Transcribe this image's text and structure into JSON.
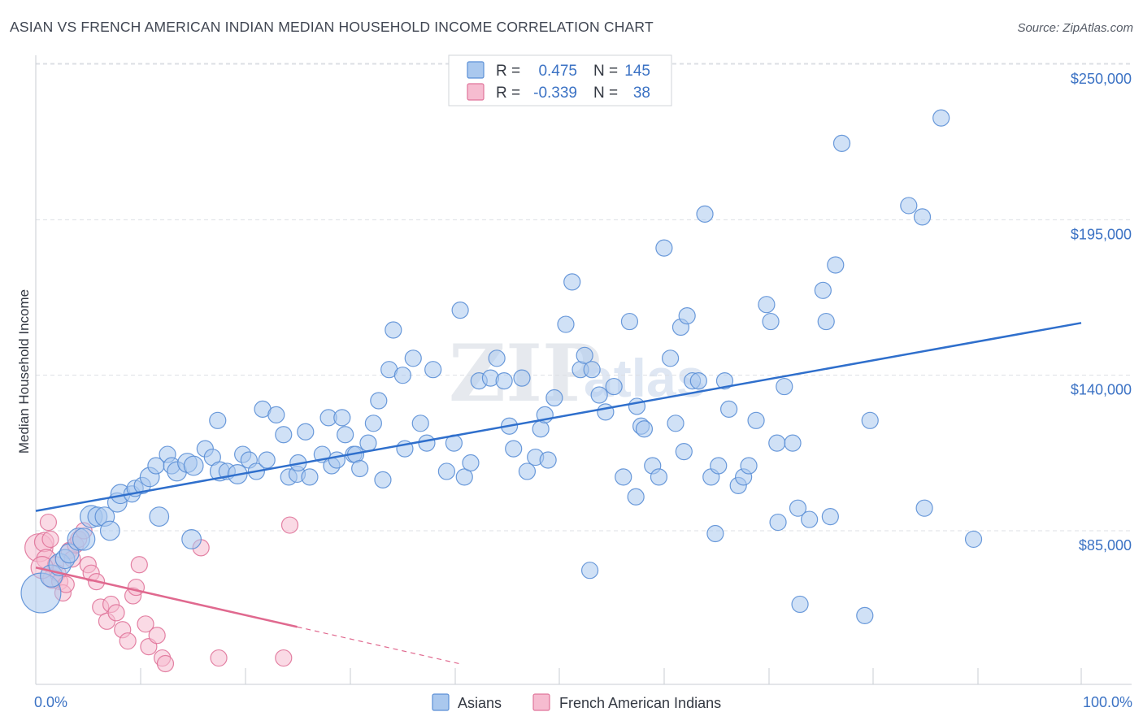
{
  "title": "ASIAN VS FRENCH AMERICAN INDIAN MEDIAN HOUSEHOLD INCOME CORRELATION CHART",
  "source": "Source: ZipAtlas.com",
  "watermark": {
    "zip": "ZIP",
    "atlas": "atlas"
  },
  "colors": {
    "asian_fill": "#aac8ee",
    "asian_stroke": "#5b8fd6",
    "asian_line": "#2f6fcc",
    "french_fill": "#f6bcd0",
    "french_stroke": "#e0749a",
    "french_line": "#e0698f",
    "axis_text": "#3b72c4",
    "grid": "#dcdfe4"
  },
  "legend": {
    "rows": [
      {
        "r_label": "R =",
        "r_value": "0.475",
        "n_label": "N =",
        "n_value": "145"
      },
      {
        "r_label": "R =",
        "r_value": "-0.339",
        "n_label": "N =",
        "n_value": "38"
      }
    ]
  },
  "bottom_legend": [
    "Asians",
    "French American Indians"
  ],
  "chart_data": {
    "type": "scatter",
    "title": "ASIAN VS FRENCH AMERICAN INDIAN MEDIAN HOUSEHOLD INCOME CORRELATION CHART",
    "xlabel": "",
    "ylabel": "Median Household Income",
    "x_tick_labels": [
      "0.0%",
      "100.0%"
    ],
    "y_tick_labels": [
      "$85,000",
      "$140,000",
      "$195,000",
      "$250,000"
    ],
    "y_ticks": [
      85000,
      140000,
      195000,
      250000
    ],
    "xlim": [
      0,
      100
    ],
    "ylim": [
      34000,
      262000
    ],
    "grid": true,
    "legend_position": "top-center",
    "series": [
      {
        "name": "Asians",
        "r": 0.475,
        "n": 145,
        "trend": {
          "x": [
            0,
            100
          ],
          "y": [
            92000,
            158500
          ]
        },
        "points": [
          [
            0.5,
            63,
            26
          ],
          [
            1.5,
            69,
            14
          ],
          [
            2.3,
            73,
            14
          ],
          [
            2.8,
            75,
            12
          ],
          [
            3.2,
            77,
            12
          ],
          [
            4.1,
            82,
            14
          ],
          [
            4.6,
            82,
            14
          ],
          [
            5.3,
            90,
            14
          ],
          [
            5.9,
            90,
            12
          ],
          [
            6.6,
            90,
            12
          ],
          [
            7.1,
            85,
            12
          ],
          [
            7.8,
            95,
            12
          ],
          [
            8.1,
            98,
            12
          ],
          [
            9.2,
            98,
            10
          ],
          [
            9.5,
            100,
            10
          ],
          [
            10.2,
            101,
            10
          ],
          [
            10.9,
            104,
            12
          ],
          [
            11.5,
            108,
            10
          ],
          [
            11.8,
            90,
            12
          ],
          [
            12.6,
            112,
            10
          ],
          [
            13.0,
            108,
            10
          ],
          [
            13.5,
            106,
            12
          ],
          [
            14.5,
            109,
            12
          ],
          [
            14.9,
            82,
            12
          ],
          [
            15.1,
            108,
            12
          ],
          [
            16.2,
            114,
            10
          ],
          [
            16.9,
            111,
            10
          ],
          [
            17.4,
            124,
            10
          ],
          [
            17.6,
            106,
            12
          ],
          [
            18.3,
            106,
            10
          ],
          [
            19.3,
            105,
            12
          ],
          [
            19.8,
            112,
            10
          ],
          [
            20.4,
            110,
            10
          ],
          [
            21.1,
            106,
            10
          ],
          [
            21.7,
            128,
            10
          ],
          [
            22.1,
            110,
            10
          ],
          [
            23.0,
            126,
            10
          ],
          [
            23.7,
            119,
            10
          ],
          [
            24.2,
            104,
            10
          ],
          [
            25.0,
            105,
            10
          ],
          [
            25.1,
            109,
            10
          ],
          [
            25.8,
            120,
            10
          ],
          [
            26.2,
            104,
            10
          ],
          [
            27.4,
            112,
            10
          ],
          [
            28.0,
            125,
            10
          ],
          [
            28.3,
            108,
            10
          ],
          [
            28.8,
            110,
            10
          ],
          [
            29.3,
            125,
            10
          ],
          [
            29.6,
            119,
            10
          ],
          [
            30.4,
            112,
            10
          ],
          [
            30.6,
            112,
            10
          ],
          [
            31.0,
            107,
            10
          ],
          [
            31.8,
            116,
            10
          ],
          [
            32.3,
            123,
            10
          ],
          [
            32.8,
            131,
            10
          ],
          [
            33.2,
            103,
            10
          ],
          [
            33.8,
            142,
            10
          ],
          [
            34.2,
            156,
            10
          ],
          [
            35.1,
            140,
            10
          ],
          [
            35.3,
            114,
            10
          ],
          [
            36.1,
            146,
            10
          ],
          [
            36.8,
            123,
            10
          ],
          [
            37.4,
            116,
            10
          ],
          [
            38.0,
            142,
            10
          ],
          [
            39.3,
            106,
            10
          ],
          [
            40.0,
            116,
            10
          ],
          [
            40.6,
            163,
            10
          ],
          [
            41.0,
            104,
            10
          ],
          [
            41.6,
            109,
            10
          ],
          [
            42.4,
            138,
            10
          ],
          [
            43.5,
            139,
            10
          ],
          [
            44.1,
            146,
            10
          ],
          [
            44.8,
            138,
            10
          ],
          [
            45.3,
            122,
            10
          ],
          [
            45.7,
            114,
            10
          ],
          [
            46.5,
            139,
            10
          ],
          [
            47.0,
            106,
            10
          ],
          [
            47.8,
            111,
            10
          ],
          [
            48.3,
            121,
            10
          ],
          [
            48.7,
            126,
            10
          ],
          [
            49.0,
            110,
            10
          ],
          [
            49.6,
            132,
            10
          ],
          [
            50.7,
            158,
            10
          ],
          [
            51.3,
            173,
            10
          ],
          [
            52.1,
            142,
            10
          ],
          [
            52.5,
            147,
            10
          ],
          [
            53.2,
            142,
            10
          ],
          [
            53.9,
            133,
            10
          ],
          [
            54.5,
            127,
            10
          ],
          [
            55.3,
            136,
            10
          ],
          [
            56.2,
            104,
            10
          ],
          [
            56.8,
            159,
            10
          ],
          [
            57.4,
            97,
            10
          ],
          [
            57.9,
            122,
            10
          ],
          [
            58.2,
            121,
            10
          ],
          [
            59.0,
            108,
            10
          ],
          [
            59.6,
            104,
            10
          ],
          [
            60.1,
            185,
            10
          ],
          [
            60.7,
            146,
            10
          ],
          [
            61.2,
            123,
            10
          ],
          [
            61.7,
            157,
            10
          ],
          [
            62.3,
            161,
            10
          ],
          [
            62.8,
            138,
            10
          ],
          [
            63.4,
            138,
            10
          ],
          [
            64.0,
            197,
            10
          ],
          [
            64.6,
            104,
            10
          ],
          [
            65.3,
            108,
            10
          ],
          [
            65.9,
            138,
            10
          ],
          [
            66.3,
            128,
            10
          ],
          [
            67.2,
            101,
            10
          ],
          [
            67.7,
            104,
            10
          ],
          [
            68.2,
            108,
            10
          ],
          [
            68.9,
            124,
            10
          ],
          [
            69.9,
            165,
            10
          ],
          [
            70.3,
            159,
            10
          ],
          [
            70.9,
            116,
            10
          ],
          [
            71.6,
            136,
            10
          ],
          [
            72.4,
            116,
            10
          ],
          [
            72.9,
            93,
            10
          ],
          [
            73.1,
            59,
            10
          ],
          [
            74.0,
            89,
            10
          ],
          [
            75.3,
            170,
            10
          ],
          [
            75.6,
            159,
            10
          ],
          [
            76.0,
            90,
            10
          ],
          [
            76.5,
            179,
            10
          ],
          [
            77.1,
            222,
            10
          ],
          [
            79.8,
            124,
            10
          ],
          [
            79.3,
            55,
            10
          ],
          [
            83.5,
            200,
            10
          ],
          [
            84.8,
            196,
            10
          ],
          [
            85.0,
            93,
            10
          ],
          [
            86.6,
            231,
            10
          ],
          [
            89.7,
            82,
            10
          ],
          [
            53.0,
            71,
            10
          ],
          [
            65.0,
            84,
            10
          ],
          [
            71.0,
            88,
            10
          ],
          [
            62.0,
            113,
            10
          ],
          [
            57.5,
            129,
            10
          ]
        ]
      },
      {
        "name": "French American Indians",
        "r": -0.339,
        "n": 38,
        "trend": {
          "x": [
            0,
            25
          ],
          "y": [
            72000,
            51000
          ]
        },
        "trend_dashed": {
          "x": [
            25,
            40.5
          ],
          "y": [
            51000,
            38000
          ]
        },
        "points": [
          [
            0.3,
            79,
            18
          ],
          [
            0.8,
            81,
            12
          ],
          [
            1.0,
            75,
            12
          ],
          [
            1.2,
            88,
            10
          ],
          [
            1.4,
            82,
            10
          ],
          [
            1.6,
            68,
            12
          ],
          [
            1.9,
            73,
            10
          ],
          [
            2.1,
            70,
            10
          ],
          [
            2.3,
            67,
            10
          ],
          [
            2.6,
            63,
            10
          ],
          [
            2.9,
            66,
            10
          ],
          [
            3.2,
            78,
            10
          ],
          [
            3.5,
            75,
            10
          ],
          [
            3.8,
            80,
            10
          ],
          [
            4.1,
            82,
            10
          ],
          [
            4.6,
            85,
            10
          ],
          [
            5.0,
            73,
            10
          ],
          [
            5.3,
            70,
            10
          ],
          [
            5.8,
            67,
            10
          ],
          [
            6.2,
            58,
            10
          ],
          [
            6.8,
            53,
            10
          ],
          [
            7.2,
            59,
            10
          ],
          [
            7.7,
            56,
            10
          ],
          [
            8.3,
            50,
            10
          ],
          [
            8.8,
            46,
            10
          ],
          [
            9.3,
            62,
            10
          ],
          [
            9.6,
            65,
            10
          ],
          [
            9.9,
            73,
            10
          ],
          [
            10.5,
            52,
            10
          ],
          [
            10.8,
            44,
            10
          ],
          [
            11.6,
            48,
            10
          ],
          [
            12.1,
            40,
            10
          ],
          [
            12.4,
            38,
            10
          ],
          [
            15.8,
            79,
            10
          ],
          [
            17.5,
            40,
            10
          ],
          [
            23.7,
            40,
            10
          ],
          [
            24.3,
            87,
            10
          ],
          [
            0.6,
            72,
            14
          ]
        ]
      }
    ]
  }
}
